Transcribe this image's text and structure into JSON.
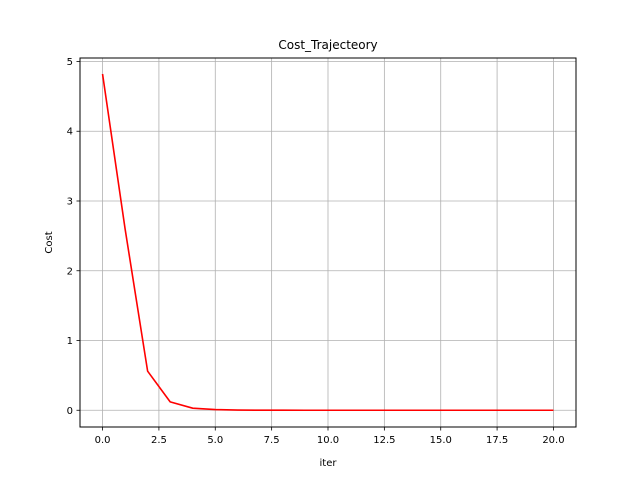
{
  "chart_data": {
    "type": "line",
    "title": "Cost_Trajecteory",
    "xlabel": "iter",
    "ylabel": "Cost",
    "xlim": [
      -1,
      21
    ],
    "ylim": [
      -0.24,
      5.05
    ],
    "xticks": [
      0,
      2.5,
      5,
      7.5,
      10,
      12.5,
      15,
      17.5,
      20
    ],
    "xtick_labels": [
      "0.0",
      "2.5",
      "5.0",
      "7.5",
      "10.0",
      "12.5",
      "15.0",
      "17.5",
      "20.0"
    ],
    "yticks": [
      0,
      1,
      2,
      3,
      4,
      5
    ],
    "ytick_labels": [
      "0",
      "1",
      "2",
      "3",
      "4",
      "5"
    ],
    "grid": true,
    "series": [
      {
        "color": "#ff0000",
        "x": [
          0,
          1,
          2,
          3,
          4,
          5,
          6,
          7,
          8,
          9,
          10,
          11,
          12,
          13,
          14,
          15,
          16,
          17,
          18,
          19,
          20
        ],
        "values": [
          4.82,
          2.6,
          0.56,
          0.12,
          0.03,
          0.01,
          0.003,
          0.001,
          0.0005,
          0.0002,
          0.0001,
          0,
          0,
          0,
          0,
          0,
          0,
          0,
          0,
          0,
          0
        ]
      }
    ]
  }
}
